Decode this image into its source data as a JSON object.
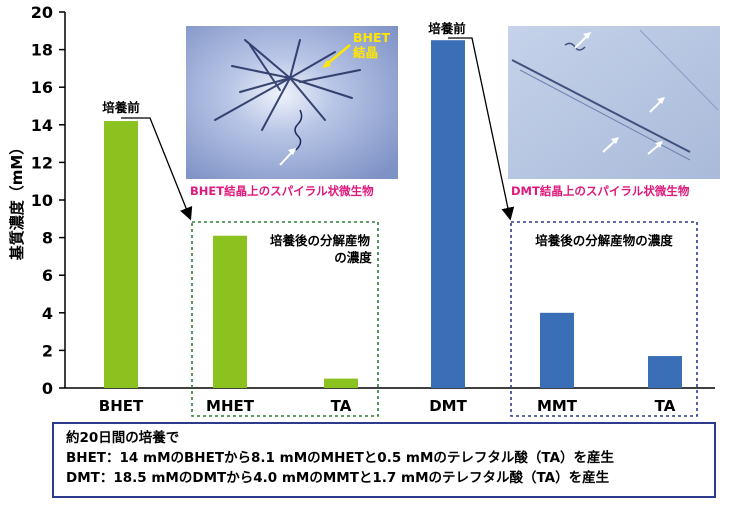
{
  "chart_data": {
    "type": "bar",
    "ylabel": "基質濃度（mM）",
    "ylim": [
      0,
      20
    ],
    "yticks": [
      0,
      2,
      4,
      6,
      8,
      10,
      12,
      14,
      16,
      18,
      20
    ],
    "categories": [
      "BHET",
      "MHET",
      "TA",
      "DMT",
      "MMT",
      "TA"
    ],
    "values": [
      14.2,
      8.1,
      0.5,
      18.5,
      4.0,
      1.7
    ],
    "bar_colors": [
      "#8cc21f",
      "#8cc21f",
      "#8cc21f",
      "#3a6fb8",
      "#3a6fb8",
      "#3a6fb8"
    ],
    "annotations": {
      "before_culture_bhet": "培養前",
      "before_culture_dmt": "培養前",
      "products_bhet": [
        "培養後の分解産物",
        "の濃度"
      ],
      "products_dmt": "培養後の分解産物の濃度"
    },
    "box_colors": {
      "bhet": "#2e7d3a",
      "dmt": "#2e3a8c"
    }
  },
  "micrographs": {
    "bhet": {
      "caption": "BHET結晶上のスパイラル状微生物",
      "crystal_label": [
        "BHET",
        "結晶"
      ]
    },
    "dmt": {
      "caption": "DMT結晶上のスパイラル状微生物"
    }
  },
  "summary": {
    "line1": "約20日間の培養で",
    "line2": "BHET：14 mMのBHETから8.1 mMのMHETと0.5 mMのテレフタル酸（TA）を産生",
    "line3": "DMT：18.5 mMのDMTから4.0 mMのMMTと1.7 mMのテレフタル酸（TA）を産生"
  }
}
